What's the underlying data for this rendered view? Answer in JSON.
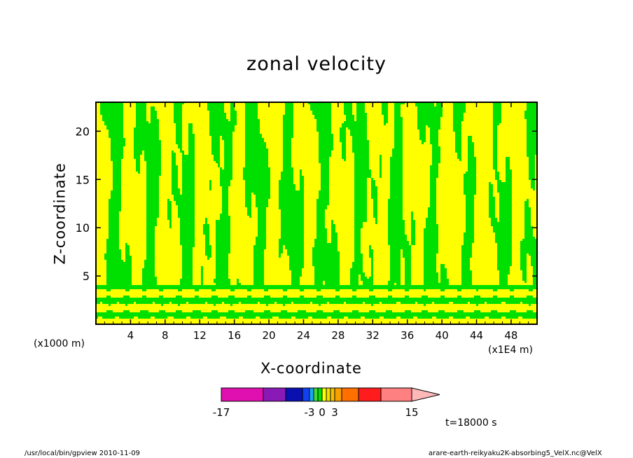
{
  "chart_data": {
    "type": "heatmap",
    "title": "zonal velocity",
    "xlabel": "X-coordinate",
    "ylabel": "Z-coordinate",
    "x_unit": "(x1E4 m)",
    "y_unit": "(x1000 m)",
    "xlim": [
      0,
      51
    ],
    "ylim": [
      0,
      23
    ],
    "x_ticks": [
      4,
      8,
      12,
      16,
      20,
      24,
      28,
      32,
      36,
      40,
      44,
      48
    ],
    "y_ticks": [
      5,
      10,
      15,
      20
    ],
    "colorbar": {
      "min": -17,
      "max": 15,
      "labels": [
        -17,
        -3,
        0,
        3,
        15
      ],
      "boundaries": [
        -17,
        -12,
        -8,
        -5,
        -3,
        -2,
        -1,
        0,
        1,
        2,
        3,
        5,
        8,
        12,
        15
      ],
      "colors": [
        "#e010b0",
        "#8a1ab8",
        "#0a10b0",
        "#1040f0",
        "#18a8f0",
        "#40d840",
        "#00e000",
        "#ffff00",
        "#f0e000",
        "#f8c000",
        "#f8a000",
        "#ff7000",
        "#ff1c1c",
        "#ff8080",
        "#ffb8b8"
      ]
    },
    "field_colors": {
      "positive": "#ffff00",
      "negative": "#00e000",
      "contour": "#2a5a10"
    },
    "time_label": "t=18000 s"
  },
  "footer": {
    "left": "/usr/local/bin/gpview   2010-11-09",
    "right": "arare-earth-reikyaku2K-absorbing5_VelX.nc@VelX"
  }
}
